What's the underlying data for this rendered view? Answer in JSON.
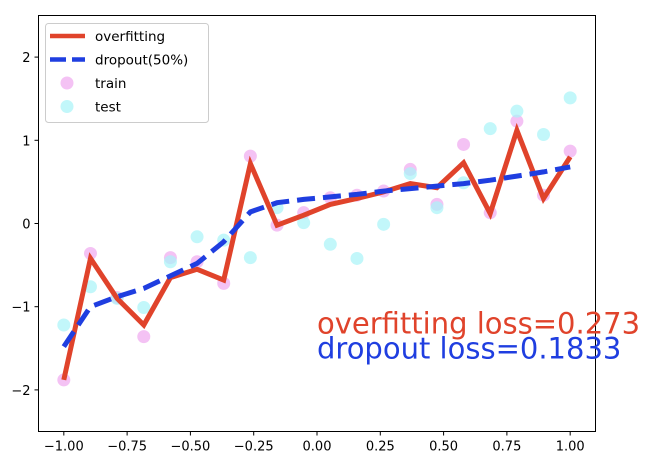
{
  "chart_data": {
    "type": "line",
    "title": "",
    "xlabel": "",
    "ylabel": "",
    "xlim": [
      -1.1,
      1.1
    ],
    "ylim": [
      -2.5,
      2.5
    ],
    "grid": false,
    "legend_position": "top-left",
    "x_ticks": [
      {
        "value": -1.0,
        "label": "−1.00"
      },
      {
        "value": -0.75,
        "label": "−0.75"
      },
      {
        "value": -0.5,
        "label": "−0.50"
      },
      {
        "value": -0.25,
        "label": "−0.25"
      },
      {
        "value": 0.0,
        "label": "0.00"
      },
      {
        "value": 0.25,
        "label": "0.25"
      },
      {
        "value": 0.5,
        "label": "0.50"
      },
      {
        "value": 0.75,
        "label": "0.75"
      },
      {
        "value": 1.0,
        "label": "1.00"
      }
    ],
    "y_ticks": [
      {
        "value": -2,
        "label": "−2"
      },
      {
        "value": -1,
        "label": "−1"
      },
      {
        "value": 0,
        "label": "0"
      },
      {
        "value": 1,
        "label": "1"
      },
      {
        "value": 2,
        "label": "2"
      }
    ],
    "x": [
      -1.0,
      -0.8947,
      -0.7895,
      -0.6842,
      -0.5789,
      -0.4737,
      -0.3684,
      -0.2632,
      -0.1579,
      -0.0526,
      0.0526,
      0.1579,
      0.2632,
      0.3684,
      0.4737,
      0.5789,
      0.6842,
      0.7895,
      0.8947,
      1.0
    ],
    "series": [
      {
        "name": "overfitting",
        "kind": "line",
        "style": "solid",
        "color": "#e0432b",
        "values": [
          -1.88,
          -0.42,
          -0.9,
          -1.22,
          -0.65,
          -0.55,
          -0.68,
          0.72,
          -0.02,
          0.1,
          0.23,
          0.3,
          0.38,
          0.48,
          0.43,
          0.73,
          0.12,
          1.12,
          0.3,
          0.8
        ]
      },
      {
        "name": "dropout(50%)",
        "kind": "line",
        "style": "dashed",
        "color": "#1f3ee0",
        "values": [
          -1.48,
          -1.0,
          -0.88,
          -0.78,
          -0.63,
          -0.48,
          -0.22,
          0.14,
          0.25,
          0.29,
          0.32,
          0.35,
          0.39,
          0.42,
          0.45,
          0.48,
          0.52,
          0.57,
          0.62,
          0.68
        ]
      },
      {
        "name": "train",
        "kind": "scatter",
        "color": "#f0a8f0",
        "values": [
          -1.88,
          -0.36,
          -0.89,
          -1.36,
          -0.41,
          -0.46,
          -0.72,
          0.81,
          -0.02,
          0.13,
          0.31,
          0.34,
          0.39,
          0.65,
          0.23,
          0.95,
          0.13,
          1.23,
          0.34,
          0.87
        ]
      },
      {
        "name": "test",
        "kind": "scatter",
        "color": "#a8f4f8",
        "values": [
          -1.22,
          -0.76,
          -0.9,
          -1.01,
          -0.46,
          -0.16,
          -0.2,
          -0.41,
          0.19,
          0.01,
          -0.25,
          -0.42,
          -0.01,
          0.6,
          0.19,
          0.49,
          1.14,
          1.35,
          1.07,
          1.51
        ]
      }
    ],
    "legend": [
      {
        "label": "overfitting",
        "marker": "line-solid",
        "color": "#e0432b"
      },
      {
        "label": "dropout(50%)",
        "marker": "line-dashed",
        "color": "#1f3ee0"
      },
      {
        "label": "train",
        "marker": "circle",
        "color": "#f0a8f0"
      },
      {
        "label": "test",
        "marker": "circle",
        "color": "#a8f4f8"
      }
    ],
    "annotations": [
      {
        "text": "overfitting loss=0.273",
        "x": 0.0,
        "y": -1.2,
        "color": "#e0432b"
      },
      {
        "text": "dropout loss=0.1833",
        "x": 0.0,
        "y": -1.5,
        "color": "#1f3ee0"
      }
    ]
  }
}
